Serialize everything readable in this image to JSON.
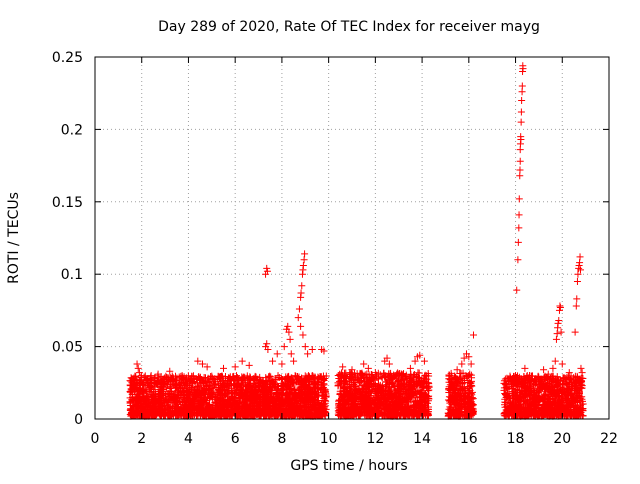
{
  "chart_data": {
    "type": "scatter",
    "title": "Day 289 of 2020, Rate Of TEC Index for receiver mayg",
    "xlabel": "GPS time / hours",
    "ylabel": "ROTI / TECUs",
    "xlim": [
      0,
      22
    ],
    "ylim": [
      0,
      0.25
    ],
    "xticks": [
      0,
      2,
      4,
      6,
      8,
      10,
      12,
      14,
      16,
      18,
      20,
      22
    ],
    "yticks": [
      0,
      0.05,
      0.1,
      0.15,
      0.2,
      0.25
    ],
    "ytick_labels": [
      "0",
      "0.05",
      "0.1",
      "0.15",
      "0.2",
      "0.25"
    ],
    "grid": true,
    "marker": "+",
    "colors": {
      "marker": "#ff0000",
      "axis": "#000000",
      "grid": "#a0a0a0"
    },
    "series": [
      {
        "name": "ROTI",
        "bands": [
          {
            "x_start": 1.5,
            "x_end": 9.9,
            "y_min": 0.002,
            "y_max": 0.03
          },
          {
            "x_start": 10.4,
            "x_end": 14.3,
            "y_min": 0.002,
            "y_max": 0.032
          },
          {
            "x_start": 15.1,
            "x_end": 16.2,
            "y_min": 0.002,
            "y_max": 0.032
          },
          {
            "x_start": 17.5,
            "x_end": 20.9,
            "y_min": 0.002,
            "y_max": 0.03
          }
        ],
        "points": [
          {
            "x": 1.8,
            "y": 0.038
          },
          {
            "x": 1.85,
            "y": 0.035
          },
          {
            "x": 1.9,
            "y": 0.032
          },
          {
            "x": 2.7,
            "y": 0.031
          },
          {
            "x": 3.2,
            "y": 0.033
          },
          {
            "x": 4.4,
            "y": 0.04
          },
          {
            "x": 4.6,
            "y": 0.038
          },
          {
            "x": 4.8,
            "y": 0.036
          },
          {
            "x": 5.5,
            "y": 0.035
          },
          {
            "x": 6.0,
            "y": 0.036
          },
          {
            "x": 6.3,
            "y": 0.04
          },
          {
            "x": 6.6,
            "y": 0.037
          },
          {
            "x": 7.3,
            "y": 0.05
          },
          {
            "x": 7.35,
            "y": 0.052
          },
          {
            "x": 7.4,
            "y": 0.048
          },
          {
            "x": 7.3,
            "y": 0.1
          },
          {
            "x": 7.35,
            "y": 0.104
          },
          {
            "x": 7.38,
            "y": 0.102
          },
          {
            "x": 7.6,
            "y": 0.04
          },
          {
            "x": 7.8,
            "y": 0.045
          },
          {
            "x": 8.0,
            "y": 0.038
          },
          {
            "x": 8.1,
            "y": 0.05
          },
          {
            "x": 8.2,
            "y": 0.062
          },
          {
            "x": 8.25,
            "y": 0.064
          },
          {
            "x": 8.3,
            "y": 0.06
          },
          {
            "x": 8.35,
            "y": 0.055
          },
          {
            "x": 8.4,
            "y": 0.045
          },
          {
            "x": 8.5,
            "y": 0.04
          },
          {
            "x": 8.7,
            "y": 0.07
          },
          {
            "x": 8.75,
            "y": 0.076
          },
          {
            "x": 8.8,
            "y": 0.084
          },
          {
            "x": 8.82,
            "y": 0.087
          },
          {
            "x": 8.85,
            "y": 0.092
          },
          {
            "x": 8.88,
            "y": 0.1
          },
          {
            "x": 8.9,
            "y": 0.103
          },
          {
            "x": 8.92,
            "y": 0.106
          },
          {
            "x": 8.95,
            "y": 0.11
          },
          {
            "x": 8.97,
            "y": 0.114
          },
          {
            "x": 8.8,
            "y": 0.064
          },
          {
            "x": 8.9,
            "y": 0.058
          },
          {
            "x": 9.0,
            "y": 0.05
          },
          {
            "x": 9.1,
            "y": 0.045
          },
          {
            "x": 9.3,
            "y": 0.048
          },
          {
            "x": 9.7,
            "y": 0.048
          },
          {
            "x": 9.8,
            "y": 0.047
          },
          {
            "x": 10.6,
            "y": 0.036
          },
          {
            "x": 11.0,
            "y": 0.034
          },
          {
            "x": 11.5,
            "y": 0.038
          },
          {
            "x": 11.7,
            "y": 0.035
          },
          {
            "x": 12.0,
            "y": 0.032
          },
          {
            "x": 12.4,
            "y": 0.04
          },
          {
            "x": 12.5,
            "y": 0.042
          },
          {
            "x": 12.6,
            "y": 0.038
          },
          {
            "x": 13.0,
            "y": 0.031
          },
          {
            "x": 13.5,
            "y": 0.035
          },
          {
            "x": 13.7,
            "y": 0.04
          },
          {
            "x": 13.8,
            "y": 0.043
          },
          {
            "x": 13.9,
            "y": 0.044
          },
          {
            "x": 14.1,
            "y": 0.04
          },
          {
            "x": 15.5,
            "y": 0.034
          },
          {
            "x": 15.7,
            "y": 0.038
          },
          {
            "x": 15.8,
            "y": 0.042
          },
          {
            "x": 15.9,
            "y": 0.045
          },
          {
            "x": 16.0,
            "y": 0.043
          },
          {
            "x": 16.1,
            "y": 0.038
          },
          {
            "x": 16.2,
            "y": 0.058
          },
          {
            "x": 18.0,
            "y": 0.03
          },
          {
            "x": 18.05,
            "y": 0.089
          },
          {
            "x": 18.1,
            "y": 0.11
          },
          {
            "x": 18.12,
            "y": 0.122
          },
          {
            "x": 18.14,
            "y": 0.132
          },
          {
            "x": 18.15,
            "y": 0.141
          },
          {
            "x": 18.16,
            "y": 0.152
          },
          {
            "x": 18.18,
            "y": 0.168
          },
          {
            "x": 18.19,
            "y": 0.172
          },
          {
            "x": 18.2,
            "y": 0.178
          },
          {
            "x": 18.2,
            "y": 0.186
          },
          {
            "x": 18.21,
            "y": 0.19
          },
          {
            "x": 18.22,
            "y": 0.195
          },
          {
            "x": 18.23,
            "y": 0.193
          },
          {
            "x": 18.24,
            "y": 0.205
          },
          {
            "x": 18.25,
            "y": 0.212
          },
          {
            "x": 18.26,
            "y": 0.22
          },
          {
            "x": 18.28,
            "y": 0.226
          },
          {
            "x": 18.29,
            "y": 0.23
          },
          {
            "x": 18.3,
            "y": 0.24
          },
          {
            "x": 18.31,
            "y": 0.244
          },
          {
            "x": 18.32,
            "y": 0.242
          },
          {
            "x": 18.4,
            "y": 0.035
          },
          {
            "x": 18.6,
            "y": 0.03
          },
          {
            "x": 19.2,
            "y": 0.034
          },
          {
            "x": 19.4,
            "y": 0.031
          },
          {
            "x": 19.6,
            "y": 0.035
          },
          {
            "x": 19.7,
            "y": 0.04
          },
          {
            "x": 19.75,
            "y": 0.055
          },
          {
            "x": 19.78,
            "y": 0.059
          },
          {
            "x": 19.8,
            "y": 0.063
          },
          {
            "x": 19.82,
            "y": 0.066
          },
          {
            "x": 19.85,
            "y": 0.068
          },
          {
            "x": 19.88,
            "y": 0.075
          },
          {
            "x": 19.9,
            "y": 0.078
          },
          {
            "x": 19.92,
            "y": 0.077
          },
          {
            "x": 19.95,
            "y": 0.06
          },
          {
            "x": 20.0,
            "y": 0.038
          },
          {
            "x": 20.3,
            "y": 0.032
          },
          {
            "x": 20.55,
            "y": 0.06
          },
          {
            "x": 20.6,
            "y": 0.078
          },
          {
            "x": 20.62,
            "y": 0.083
          },
          {
            "x": 20.65,
            "y": 0.095
          },
          {
            "x": 20.67,
            "y": 0.1
          },
          {
            "x": 20.7,
            "y": 0.104
          },
          {
            "x": 20.72,
            "y": 0.106
          },
          {
            "x": 20.74,
            "y": 0.108
          },
          {
            "x": 20.76,
            "y": 0.112
          },
          {
            "x": 20.78,
            "y": 0.103
          },
          {
            "x": 20.8,
            "y": 0.035
          },
          {
            "x": 20.85,
            "y": 0.032
          }
        ]
      }
    ]
  }
}
